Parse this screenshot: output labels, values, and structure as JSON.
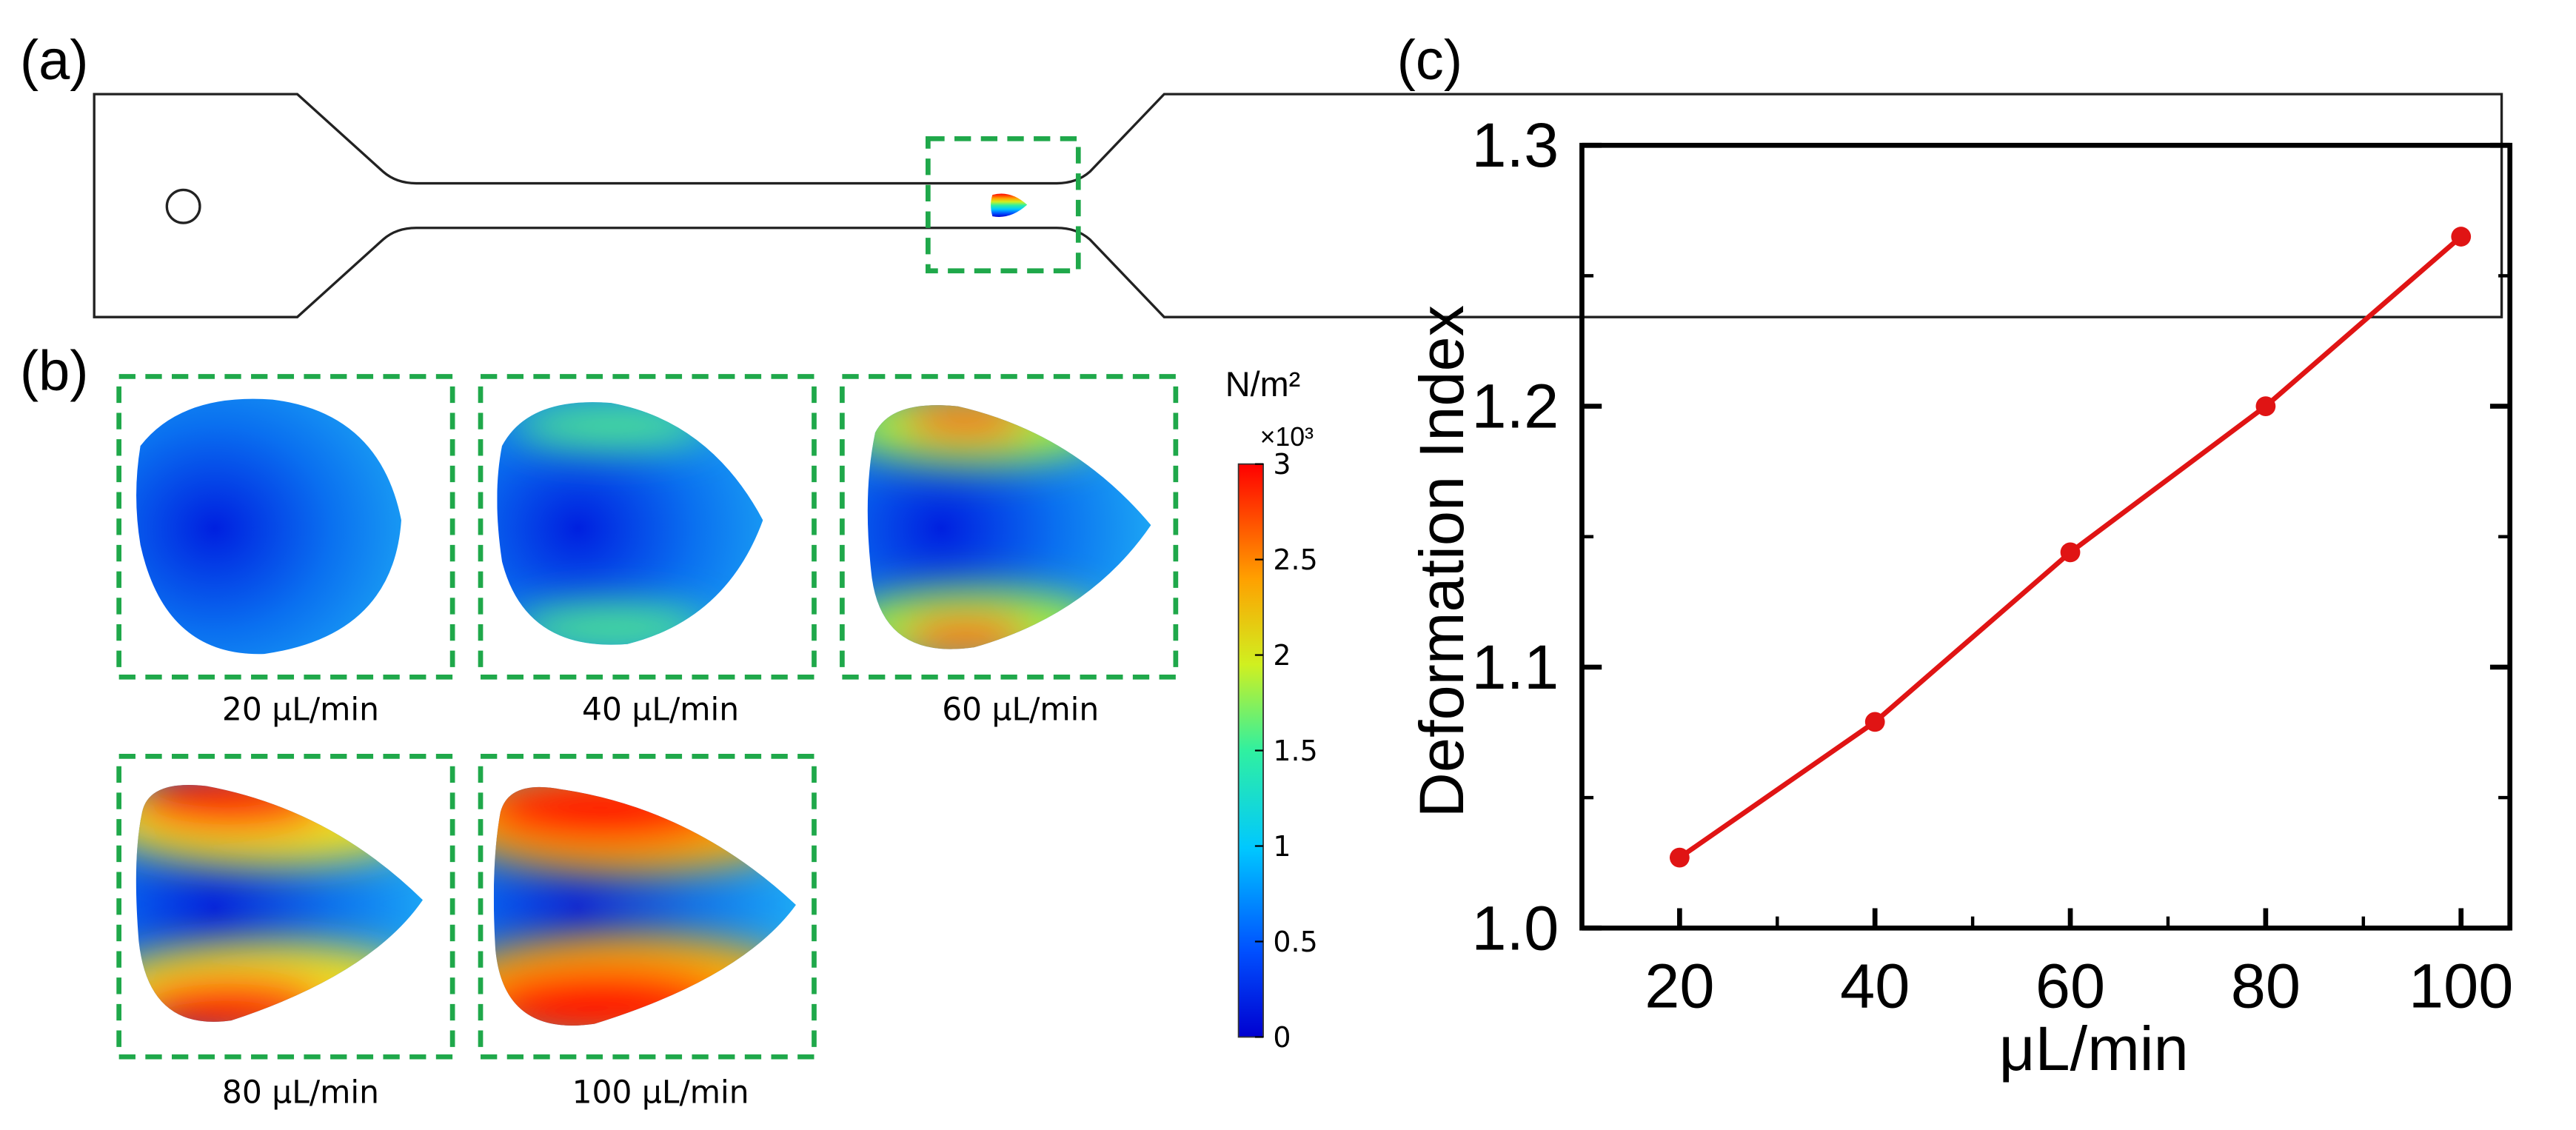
{
  "panel_a": {
    "label": "(a)"
  },
  "panel_b": {
    "label": "(b)",
    "captions": [
      "20 μL/min",
      "40 μL/min",
      "60 μL/min",
      "80 μL/min",
      "100 μL/min"
    ],
    "colorbar": {
      "unit": "N/m²",
      "multiplier": "×10³",
      "lim": [
        0,
        3
      ],
      "ticks": [
        0,
        0.5,
        1,
        1.5,
        2,
        2.5,
        3
      ]
    }
  },
  "panel_c": {
    "label": "(c)"
  },
  "chart_data": {
    "type": "line",
    "xlabel": "μL/min",
    "ylabel": "Deformation Index",
    "x": [
      20,
      40,
      60,
      80,
      100
    ],
    "series": [
      {
        "name": "Deformation Index",
        "color": "#e01414",
        "values": [
          1.027,
          1.079,
          1.144,
          1.2,
          1.265
        ]
      }
    ],
    "xlim": [
      10,
      105
    ],
    "xticks": [
      20,
      40,
      60,
      80,
      100
    ],
    "xminorticks": [
      30,
      50,
      70,
      90
    ],
    "ylim": [
      1.0,
      1.3
    ],
    "yticks": [
      {
        "value": 1.0,
        "label": "1.0"
      },
      1.1,
      1.2,
      1.3
    ],
    "yminorticks": [
      1.05,
      1.15,
      1.25
    ]
  }
}
